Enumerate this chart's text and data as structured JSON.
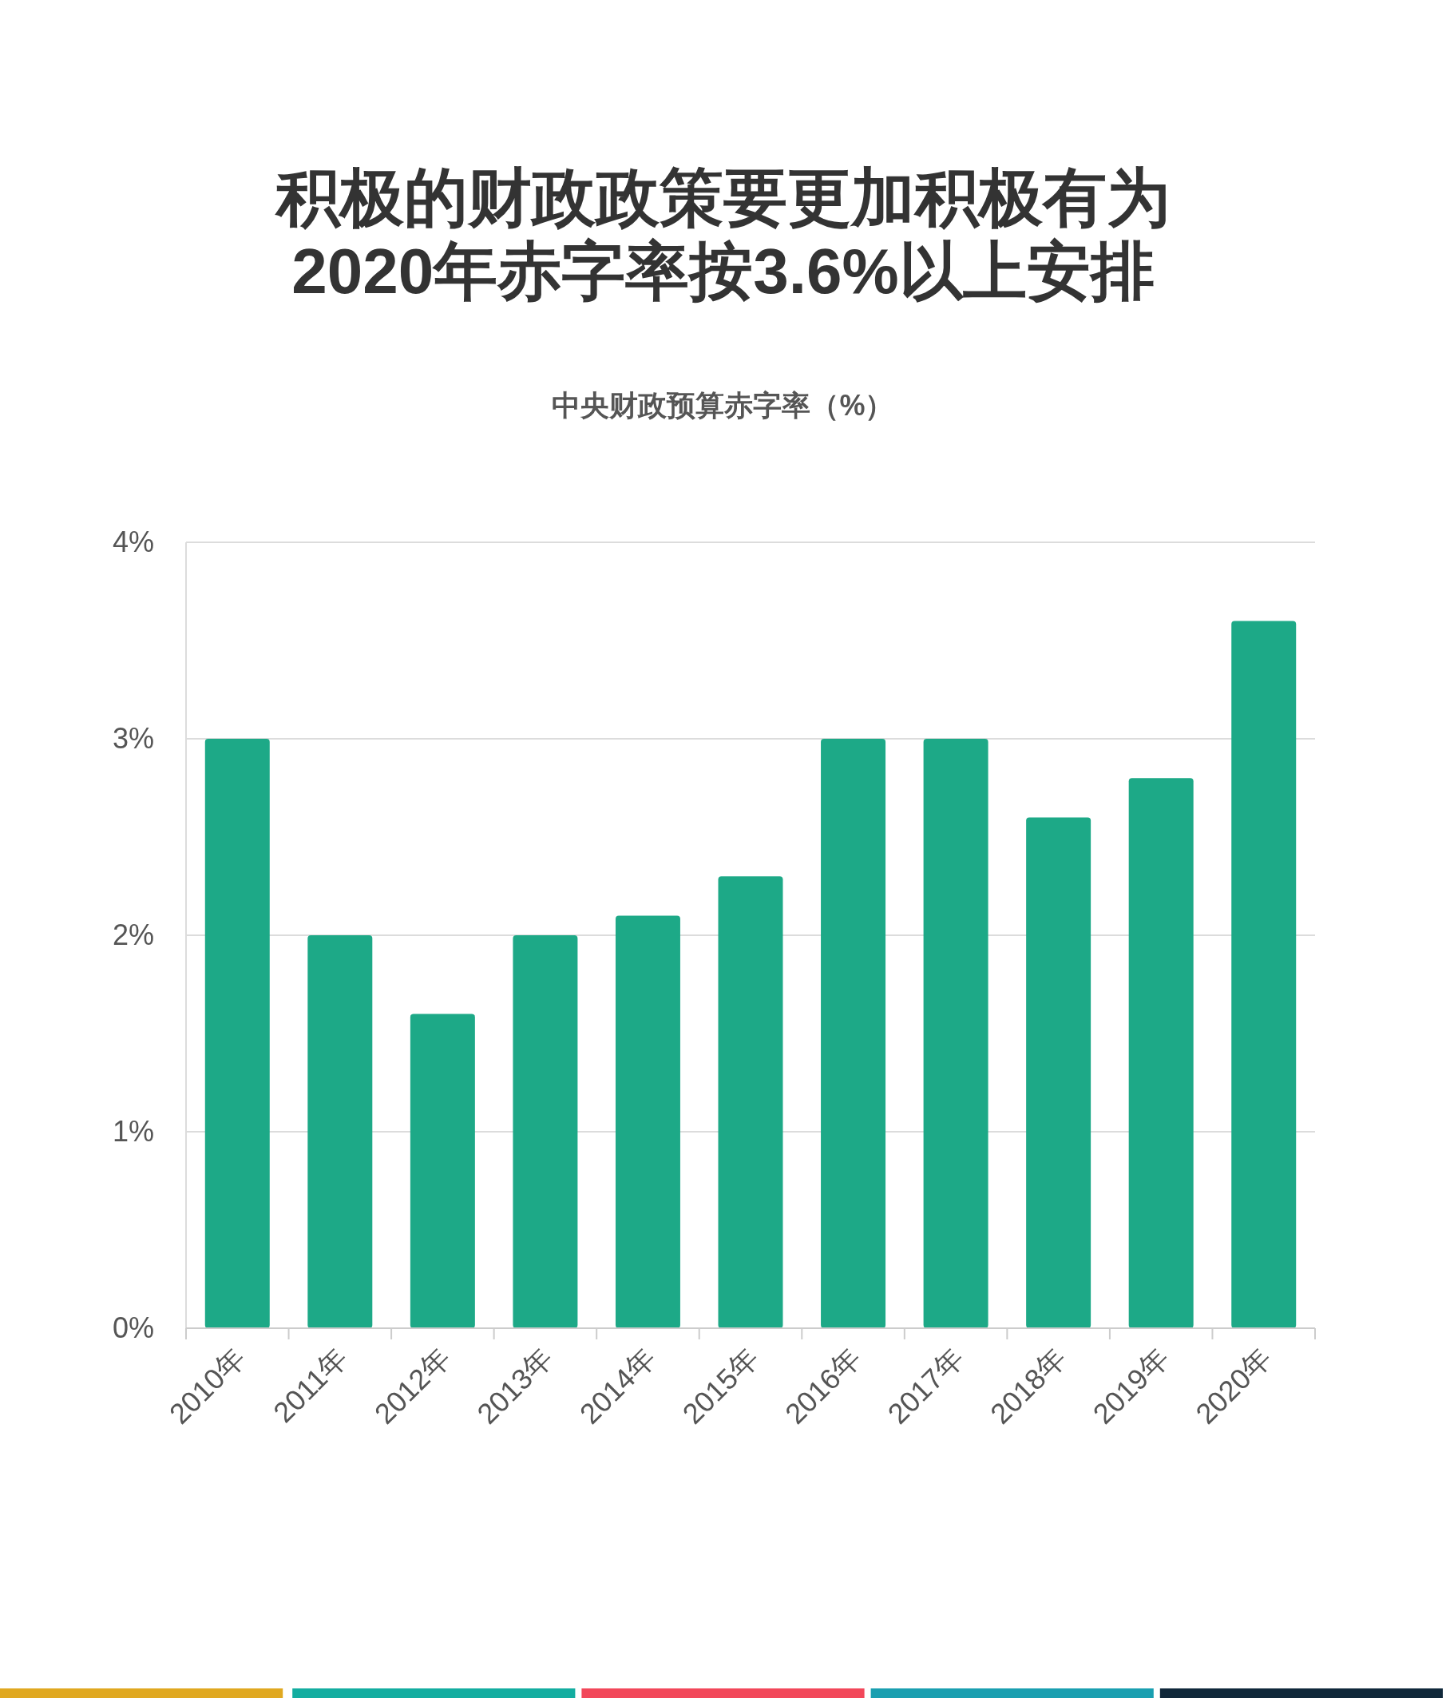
{
  "chart_data": {
    "type": "bar",
    "title": "积极的财政政策要更加积极有为\n2020年赤字率按3.6%以上安排",
    "subtitle": "中央财政预算赤字率（%）",
    "categories": [
      "2010年",
      "2011年",
      "2012年",
      "2013年",
      "2014年",
      "2015年",
      "2016年",
      "2017年",
      "2018年",
      "2019年",
      "2020年"
    ],
    "values": [
      3.0,
      2.0,
      1.6,
      2.0,
      2.1,
      2.3,
      3.0,
      3.0,
      2.6,
      2.8,
      3.6
    ],
    "color": "#1da987",
    "ylim": [
      0,
      4
    ],
    "yticks": [
      {
        "value": 0,
        "label": "0%"
      },
      {
        "value": 1,
        "label": "1%"
      },
      {
        "value": 2,
        "label": "2%"
      },
      {
        "value": 3,
        "label": "3%"
      },
      {
        "value": 4,
        "label": "4%"
      }
    ],
    "grid": "y"
  }
}
